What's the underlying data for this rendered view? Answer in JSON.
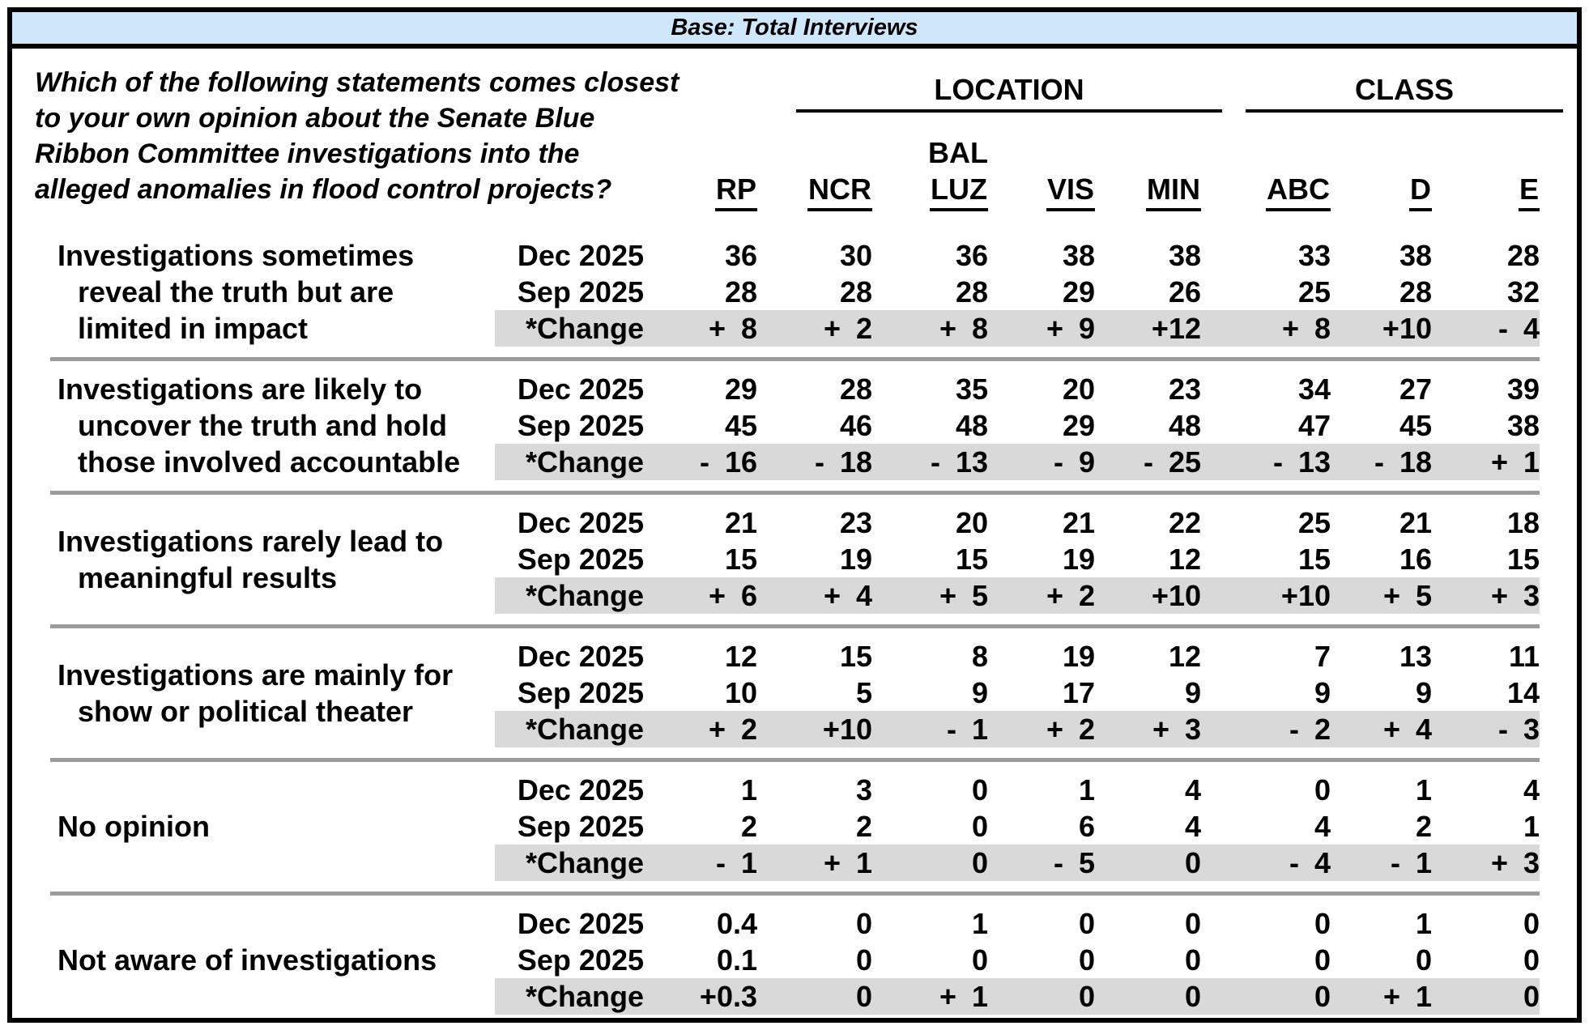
{
  "header": {
    "base_label": "Base: Total Interviews"
  },
  "question": "Which of the following statements comes closest\nto your own opinion about the Senate Blue\nRibbon Committee investigations into the\nalleged anomalies in flood control projects?",
  "columns": {
    "location_label": "LOCATION",
    "class_label": "CLASS",
    "bal_label": "BAL",
    "rp": "RP",
    "ncr": "NCR",
    "luz": "LUZ",
    "vis": "VIS",
    "min": "MIN",
    "abc": "ABC",
    "d": "D",
    "e": "E"
  },
  "colors": {
    "header_bg": "#cfe7fa",
    "change_bg": "#d9d9d9",
    "separator": "#9b9b9b"
  },
  "blocks": [
    {
      "statement": "Investigations sometimes\nreveal the truth but are\nlimited in impact",
      "rows": [
        {
          "label": "Dec 2025",
          "is_change": false,
          "values": [
            "36",
            "30",
            "36",
            "38",
            "38",
            "33",
            "38",
            "28"
          ]
        },
        {
          "label": "Sep 2025",
          "is_change": false,
          "values": [
            "28",
            "28",
            "28",
            "29",
            "26",
            "25",
            "28",
            "32"
          ]
        },
        {
          "label": "*Change",
          "is_change": true,
          "values": [
            "+ 8",
            "+ 2",
            "+ 8",
            "+ 9",
            "+12",
            "+ 8",
            "+10",
            "- 4"
          ]
        }
      ]
    },
    {
      "statement": "Investigations are likely to\nuncover the truth and hold\nthose involved accountable",
      "rows": [
        {
          "label": "Dec 2025",
          "is_change": false,
          "values": [
            "29",
            "28",
            "35",
            "20",
            "23",
            "34",
            "27",
            "39"
          ]
        },
        {
          "label": "Sep 2025",
          "is_change": false,
          "values": [
            "45",
            "46",
            "48",
            "29",
            "48",
            "47",
            "45",
            "38"
          ]
        },
        {
          "label": "*Change",
          "is_change": true,
          "values": [
            "- 16",
            "- 18",
            "- 13",
            "- 9",
            "- 25",
            "- 13",
            "- 18",
            "+ 1"
          ]
        }
      ]
    },
    {
      "statement": "Investigations rarely lead to\nmeaningful results",
      "rows": [
        {
          "label": "Dec 2025",
          "is_change": false,
          "values": [
            "21",
            "23",
            "20",
            "21",
            "22",
            "25",
            "21",
            "18"
          ]
        },
        {
          "label": "Sep 2025",
          "is_change": false,
          "values": [
            "15",
            "19",
            "15",
            "19",
            "12",
            "15",
            "16",
            "15"
          ]
        },
        {
          "label": "*Change",
          "is_change": true,
          "values": [
            "+ 6",
            "+ 4",
            "+ 5",
            "+ 2",
            "+10",
            "+10",
            "+ 5",
            "+ 3"
          ]
        }
      ]
    },
    {
      "statement": "Investigations are mainly for\nshow or political theater",
      "rows": [
        {
          "label": "Dec 2025",
          "is_change": false,
          "values": [
            "12",
            "15",
            "8",
            "19",
            "12",
            "7",
            "13",
            "11"
          ]
        },
        {
          "label": "Sep 2025",
          "is_change": false,
          "values": [
            "10",
            "5",
            "9",
            "17",
            "9",
            "9",
            "9",
            "14"
          ]
        },
        {
          "label": "*Change",
          "is_change": true,
          "values": [
            "+ 2",
            "+10",
            "- 1",
            "+ 2",
            "+ 3",
            "- 2",
            "+ 4",
            "- 3"
          ]
        }
      ]
    },
    {
      "statement": "No opinion",
      "rows": [
        {
          "label": "Dec 2025",
          "is_change": false,
          "values": [
            "1",
            "3",
            "0",
            "1",
            "4",
            "0",
            "1",
            "4"
          ]
        },
        {
          "label": "Sep 2025",
          "is_change": false,
          "values": [
            "2",
            "2",
            "0",
            "6",
            "4",
            "4",
            "2",
            "1"
          ]
        },
        {
          "label": "*Change",
          "is_change": true,
          "values": [
            "- 1",
            "+ 1",
            "0",
            "- 5",
            "0",
            "- 4",
            "- 1",
            "+ 3"
          ]
        }
      ]
    },
    {
      "statement": "Not aware of investigations",
      "rows": [
        {
          "label": "Dec 2025",
          "is_change": false,
          "values": [
            "0.4",
            "0",
            "1",
            "0",
            "0",
            "0",
            "1",
            "0"
          ]
        },
        {
          "label": "Sep 2025",
          "is_change": false,
          "values": [
            "0.1",
            "0",
            "0",
            "0",
            "0",
            "0",
            "0",
            "0"
          ]
        },
        {
          "label": "*Change",
          "is_change": true,
          "values": [
            "+0.3",
            "0",
            "+ 1",
            "0",
            "0",
            "0",
            "+ 1",
            "0"
          ]
        }
      ]
    }
  ]
}
